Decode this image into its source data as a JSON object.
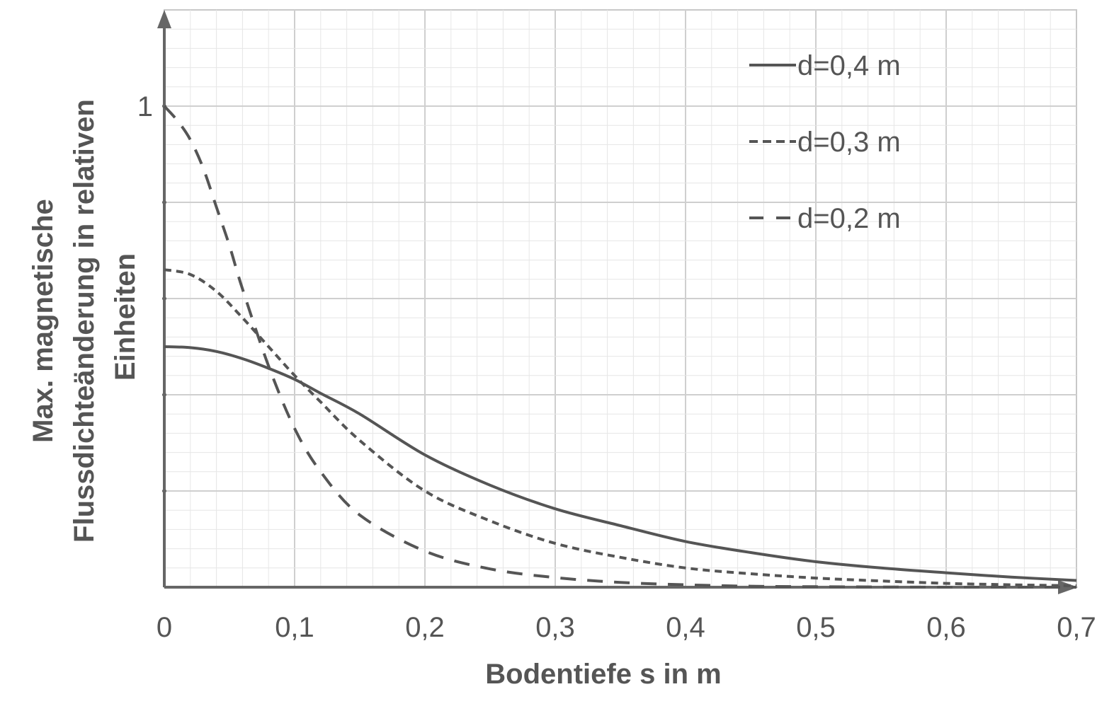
{
  "chart_data": {
    "type": "line",
    "xlabel": "Bodentiefe s in m",
    "ylabel_lines": [
      "Max. magnetische",
      "Flussdichteänderung in relativen",
      "Einheiten"
    ],
    "xlim": [
      0,
      0.7
    ],
    "ylim": [
      0,
      1.2
    ],
    "x_ticks": [
      0,
      0.1,
      0.2,
      0.3,
      0.4,
      0.5,
      0.6,
      0.7
    ],
    "x_tick_labels": [
      "0",
      "0,1",
      "0,2",
      "0,3",
      "0,4",
      "0,5",
      "0,6",
      "0,7"
    ],
    "y_ticks": [
      1
    ],
    "y_tick_labels": [
      "1"
    ],
    "grid": true,
    "legend_position": "top-right",
    "series": [
      {
        "name": "d=0,4 m",
        "style": "solid",
        "x": [
          0,
          0.02,
          0.04,
          0.06,
          0.08,
          0.1,
          0.12,
          0.15,
          0.2,
          0.25,
          0.3,
          0.35,
          0.4,
          0.45,
          0.5,
          0.55,
          0.6,
          0.65,
          0.7
        ],
        "y": [
          0.5,
          0.498,
          0.49,
          0.475,
          0.455,
          0.432,
          0.403,
          0.36,
          0.275,
          0.212,
          0.163,
          0.128,
          0.095,
          0.072,
          0.053,
          0.04,
          0.03,
          0.021,
          0.014
        ]
      },
      {
        "name": "d=0,3 m",
        "style": "dashed",
        "x": [
          0,
          0.02,
          0.04,
          0.06,
          0.08,
          0.1,
          0.12,
          0.15,
          0.2,
          0.25,
          0.3,
          0.35,
          0.4,
          0.45,
          0.5,
          0.55,
          0.6,
          0.65,
          0.7
        ],
        "y": [
          0.66,
          0.65,
          0.615,
          0.56,
          0.5,
          0.44,
          0.385,
          0.305,
          0.2,
          0.138,
          0.091,
          0.062,
          0.04,
          0.028,
          0.019,
          0.013,
          0.008,
          0.005,
          0.003
        ]
      },
      {
        "name": "d=0,2 m",
        "style": "long-dashed",
        "x": [
          0,
          0.01,
          0.02,
          0.03,
          0.04,
          0.05,
          0.06,
          0.08,
          0.1,
          0.12,
          0.15,
          0.2,
          0.25,
          0.3,
          0.35,
          0.4,
          0.45,
          0.5,
          0.6,
          0.7
        ],
        "y": [
          1.0,
          0.97,
          0.93,
          0.87,
          0.79,
          0.71,
          0.62,
          0.46,
          0.33,
          0.24,
          0.15,
          0.075,
          0.038,
          0.02,
          0.01,
          0.005,
          0.002,
          0.001,
          0.0,
          0.0
        ]
      }
    ]
  }
}
